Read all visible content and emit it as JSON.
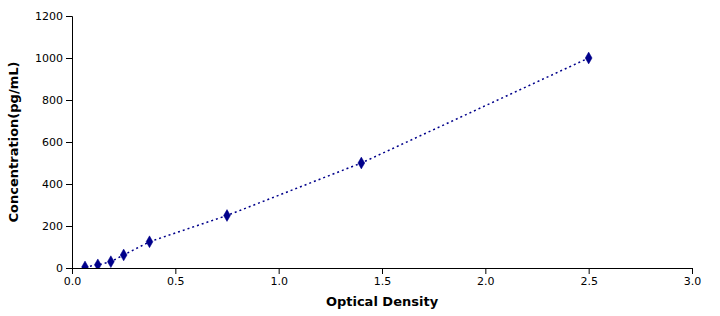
{
  "chart_data": {
    "type": "line",
    "xlabel": "Optical Density",
    "ylabel": "Concentration(pg/mL)",
    "x": [
      0.063,
      0.125,
      0.188,
      0.25,
      0.375,
      0.75,
      1.4,
      2.5
    ],
    "values": [
      5,
      15,
      30,
      62,
      125,
      250,
      500,
      1000
    ],
    "color": "#00008B",
    "marker": "diamond",
    "line_style": "dotted",
    "xlim": [
      0,
      3
    ],
    "ylim": [
      0,
      1200
    ],
    "xticks": [
      {
        "value": 0,
        "label": "0.0"
      },
      0.5,
      {
        "value": 1,
        "label": "1.0"
      },
      1.5,
      {
        "value": 2,
        "label": "2.0"
      },
      2.5,
      {
        "value": 3,
        "label": "3.0"
      }
    ],
    "yticks": [
      0,
      200,
      400,
      600,
      800,
      1000,
      1200
    ],
    "grid": false
  }
}
